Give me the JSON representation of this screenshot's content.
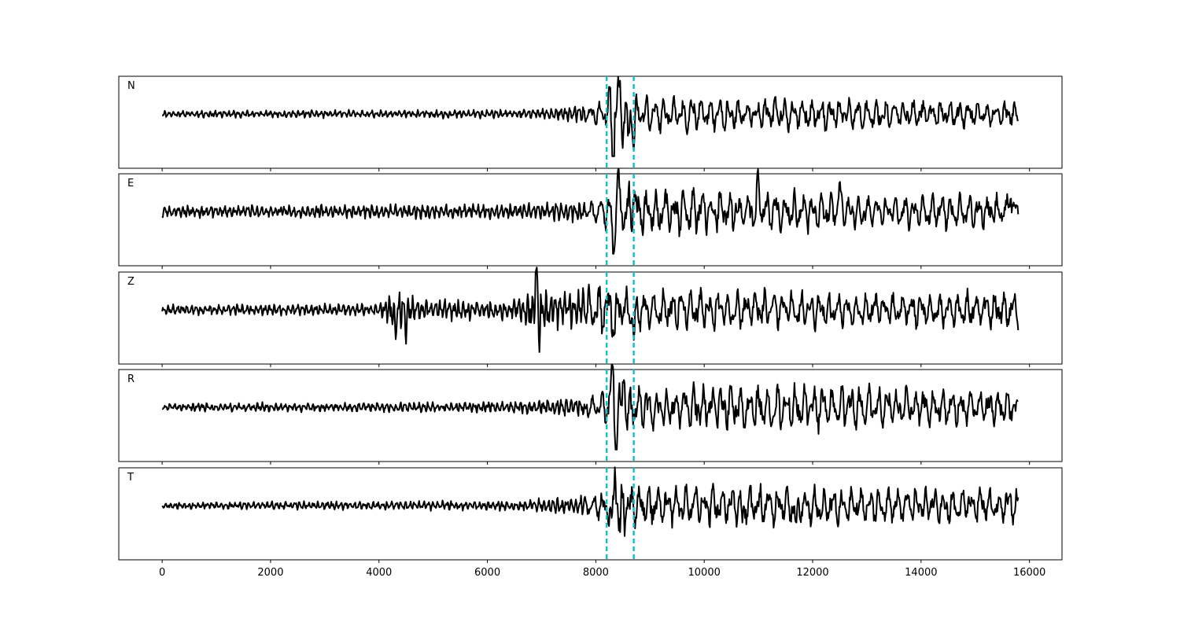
{
  "chart_data": {
    "type": "line",
    "xlim": [
      -800,
      16600
    ],
    "x_ticks": [
      0,
      2000,
      4000,
      6000,
      8000,
      10000,
      12000,
      14000,
      16000
    ],
    "x_tick_labels": [
      "0",
      "2000",
      "4000",
      "6000",
      "8000",
      "10000",
      "12000",
      "14000",
      "16000"
    ],
    "n_samples": 15800,
    "shared_x_axis": true,
    "y_axis_visible": false,
    "grid": false,
    "trace_color": "#000000",
    "marker_color": "#17becf",
    "vertical_markers": [
      8200,
      8700
    ],
    "marker_style": "dashed",
    "panels": [
      {
        "label": "N",
        "seed": 11,
        "envelope": [
          [
            0,
            0.08
          ],
          [
            4000,
            0.09
          ],
          [
            6500,
            0.1
          ],
          [
            7800,
            0.2
          ],
          [
            8150,
            0.3
          ],
          [
            8300,
            0.9
          ],
          [
            8750,
            0.45
          ],
          [
            9500,
            0.45
          ],
          [
            11500,
            0.4
          ],
          [
            13500,
            0.35
          ],
          [
            15800,
            0.3
          ]
        ],
        "spikes": [
          [
            8320,
            -1.0
          ],
          [
            8420,
            0.65
          ],
          [
            8600,
            -0.7
          ],
          [
            8700,
            -0.5
          ]
        ]
      },
      {
        "label": "E",
        "seed": 23,
        "envelope": [
          [
            0,
            0.15
          ],
          [
            4000,
            0.16
          ],
          [
            6500,
            0.18
          ],
          [
            7800,
            0.25
          ],
          [
            8150,
            0.35
          ],
          [
            8300,
            0.9
          ],
          [
            8750,
            0.55
          ],
          [
            9500,
            0.55
          ],
          [
            11500,
            0.5
          ],
          [
            13500,
            0.4
          ],
          [
            15800,
            0.4
          ]
        ],
        "spikes": [
          [
            8320,
            -0.95
          ],
          [
            8400,
            0.75
          ],
          [
            8700,
            0.55
          ],
          [
            11000,
            0.6
          ],
          [
            12500,
            0.65
          ],
          [
            15650,
            0.55
          ]
        ]
      },
      {
        "label": "Z",
        "seed": 37,
        "envelope": [
          [
            0,
            0.12
          ],
          [
            4000,
            0.14
          ],
          [
            4300,
            0.5
          ],
          [
            4800,
            0.25
          ],
          [
            6500,
            0.25
          ],
          [
            6900,
            0.6
          ],
          [
            7500,
            0.4
          ],
          [
            8300,
            0.7
          ],
          [
            8750,
            0.5
          ],
          [
            11500,
            0.45
          ],
          [
            13500,
            0.4
          ],
          [
            15800,
            0.45
          ]
        ],
        "spikes": [
          [
            4300,
            -0.6
          ],
          [
            4500,
            -0.55
          ],
          [
            6900,
            0.98
          ],
          [
            6950,
            -0.5
          ],
          [
            8350,
            -0.7
          ],
          [
            8700,
            -0.55
          ]
        ]
      },
      {
        "label": "R",
        "seed": 41,
        "envelope": [
          [
            0,
            0.1
          ],
          [
            4000,
            0.11
          ],
          [
            6500,
            0.14
          ],
          [
            7800,
            0.25
          ],
          [
            8150,
            0.35
          ],
          [
            8350,
            0.9
          ],
          [
            8750,
            0.55
          ],
          [
            9500,
            0.55
          ],
          [
            11500,
            0.55
          ],
          [
            13500,
            0.5
          ],
          [
            15800,
            0.4
          ]
        ],
        "spikes": [
          [
            8300,
            0.95
          ],
          [
            8380,
            -0.8
          ],
          [
            8520,
            0.8
          ],
          [
            8600,
            -0.6
          ]
        ]
      },
      {
        "label": "T",
        "seed": 53,
        "envelope": [
          [
            0,
            0.08
          ],
          [
            4000,
            0.1
          ],
          [
            6500,
            0.12
          ],
          [
            7800,
            0.25
          ],
          [
            8150,
            0.35
          ],
          [
            8350,
            0.95
          ],
          [
            8750,
            0.55
          ],
          [
            9500,
            0.5
          ],
          [
            11500,
            0.5
          ],
          [
            13500,
            0.45
          ],
          [
            15800,
            0.45
          ]
        ],
        "spikes": [
          [
            8350,
            0.98
          ],
          [
            8300,
            -0.75
          ],
          [
            8450,
            -0.6
          ],
          [
            10700,
            -0.45
          ],
          [
            11700,
            -0.6
          ]
        ]
      }
    ]
  }
}
